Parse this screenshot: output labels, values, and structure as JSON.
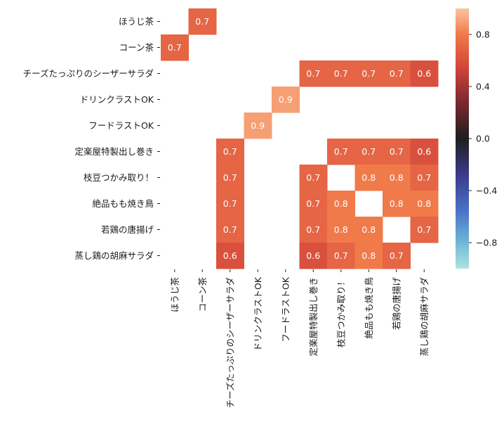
{
  "chart_data": {
    "type": "heatmap",
    "title": "",
    "xlabel": "",
    "ylabel": "",
    "labels": [
      "ほうじ茶",
      "コーン茶",
      "チーズたっぷりのシーザーサラダ",
      "ドリンクラストOK",
      "フードラストOK",
      "定楽屋特製出し巻き",
      "枝豆つかみ取り！",
      "絶品もも焼き鳥",
      "若鶏の唐揚げ",
      "蒸し鶏の胡麻サラダ"
    ],
    "values": [
      [
        null,
        0.7,
        null,
        null,
        null,
        null,
        null,
        null,
        null,
        null
      ],
      [
        0.7,
        null,
        null,
        null,
        null,
        null,
        null,
        null,
        null,
        null
      ],
      [
        null,
        null,
        null,
        null,
        null,
        0.7,
        0.7,
        0.7,
        0.7,
        0.6
      ],
      [
        null,
        null,
        null,
        null,
        0.9,
        null,
        null,
        null,
        null,
        null
      ],
      [
        null,
        null,
        null,
        0.9,
        null,
        null,
        null,
        null,
        null,
        null
      ],
      [
        null,
        null,
        0.7,
        null,
        null,
        null,
        0.7,
        0.7,
        0.7,
        0.6
      ],
      [
        null,
        null,
        0.7,
        null,
        null,
        0.7,
        null,
        0.8,
        0.8,
        0.7
      ],
      [
        null,
        null,
        0.7,
        null,
        null,
        0.7,
        0.8,
        null,
        0.8,
        0.8
      ],
      [
        null,
        null,
        0.7,
        null,
        null,
        0.7,
        0.8,
        0.8,
        null,
        0.7
      ],
      [
        null,
        null,
        0.6,
        null,
        null,
        0.6,
        0.7,
        0.8,
        0.7,
        null
      ]
    ],
    "colorbar": {
      "range": [
        -1,
        1
      ],
      "ticks": [
        -0.8,
        -0.4,
        0.0,
        0.4,
        0.8
      ],
      "tick_labels": [
        "−0.8",
        "−0.4",
        "0.0",
        "0.4",
        "0.8"
      ]
    }
  }
}
